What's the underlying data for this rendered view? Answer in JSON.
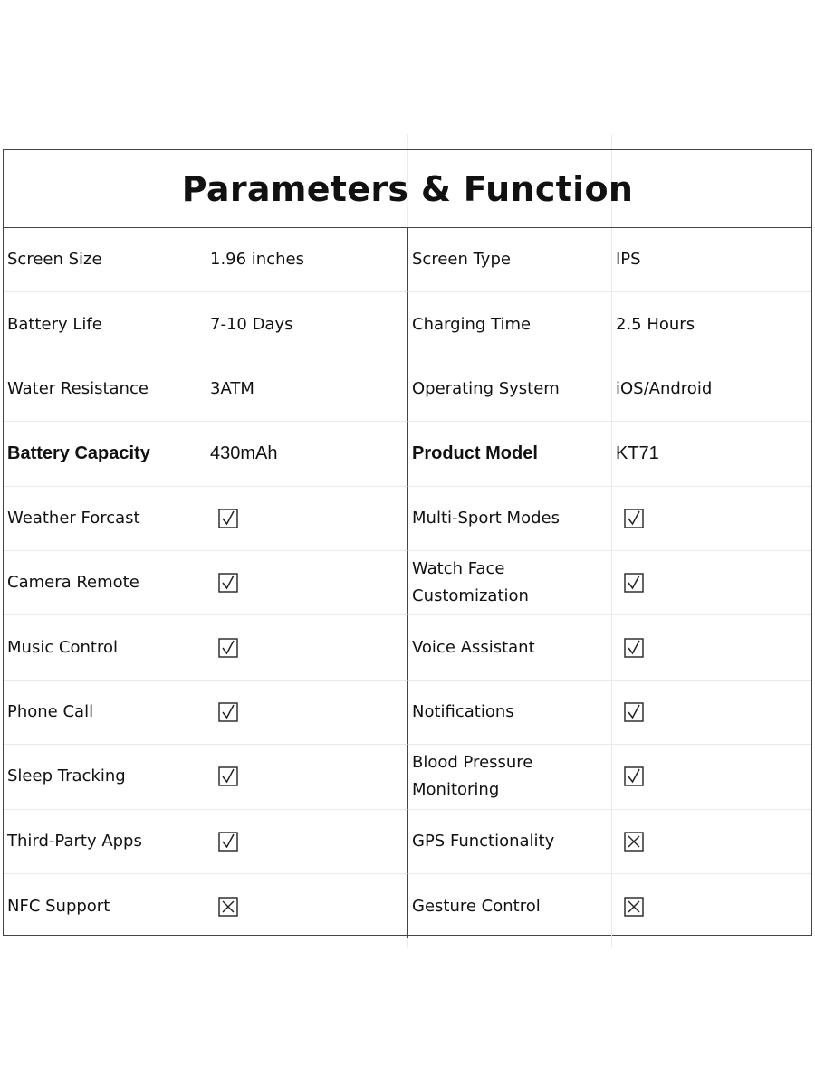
{
  "title": "Parameters & Function",
  "rows": [
    {
      "l1": "Screen Size",
      "v1": "1.96 inches",
      "l2": "Screen Type",
      "v2": "IPS"
    },
    {
      "l1": "Battery Life",
      "v1": "7-10 Days",
      "l2": "Charging Time",
      "v2": "2.5 Hours"
    },
    {
      "l1": "Water Resistance",
      "v1": "3ATM",
      "l2": "Operating System",
      "v2": "iOS/Android"
    },
    {
      "l1": "Battery Capacity",
      "v1": "430mAh",
      "l2": "Product Model",
      "v2": "KT71",
      "emphasis": true
    },
    {
      "l1": "Weather Forcast",
      "c1": "check",
      "l2": "Multi-Sport Modes",
      "c2": "check"
    },
    {
      "l1": "Camera Remote",
      "c1": "check",
      "l2": "Watch Face Customization",
      "c2": "check"
    },
    {
      "l1": "Music Control",
      "c1": "check",
      "l2": "Voice Assistant",
      "c2": "check"
    },
    {
      "l1": "Phone Call",
      "c1": "check",
      "l2": "Notifications",
      "c2": "check"
    },
    {
      "l1": "Sleep Tracking",
      "c1": "check",
      "l2": "Blood Pressure Monitoring",
      "c2": "check"
    },
    {
      "l1": "Third-Party Apps",
      "c1": "check",
      "l2": "GPS Functionality",
      "c2": "cross"
    },
    {
      "l1": "NFC Support",
      "c1": "cross",
      "l2": "Gesture Control",
      "c2": "cross"
    }
  ],
  "icons": {
    "check": "checked-box-icon",
    "cross": "crossed-box-icon"
  }
}
